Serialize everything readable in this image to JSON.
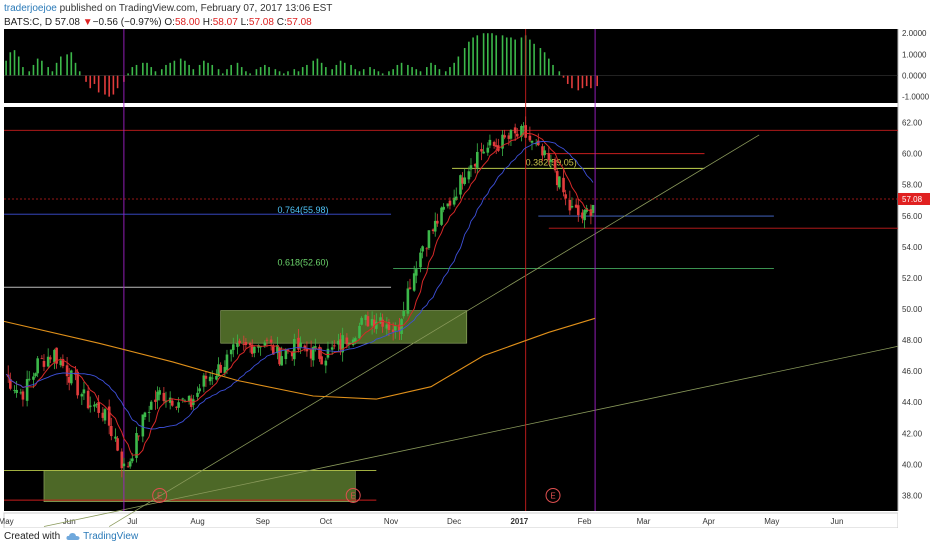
{
  "header": {
    "user": "traderjoejoe",
    "published_text": " published on TradingView.com, February 07, 2017 13:06 EST"
  },
  "quote": {
    "prefix": "BATS:C, D",
    "last": "57.08",
    "arrow": "▼",
    "change": "−0.56 (−0.97%)",
    "o_label": "O:",
    "o": "58.00",
    "h_label": "H:",
    "h": "58.07",
    "l_label": "L:",
    "l": "57.08",
    "c_label": "C:",
    "c": "57.08"
  },
  "footer": {
    "created_with": "Created with",
    "brand": "TradingView"
  },
  "colors": {
    "background": "#000000",
    "up": "#3cb84a",
    "down": "#e23c3c",
    "ma_fast": "#d62828",
    "ma_mid": "#3d4fd8",
    "ma_slow": "#e0901a",
    "zone": "#5b7a2e",
    "vline": "#a020c8",
    "hline": "#c81e1e",
    "fib": "#4fc3f7",
    "fib_green": "#6cd46c",
    "trend": "#8a9a5b",
    "osc_up": "#3cb84a",
    "osc_down": "#e23c3c"
  },
  "chart_data": {
    "type": "candlestick",
    "price_axis": {
      "ticks": [
        "62.00",
        "60.00",
        "58.00",
        "56.00",
        "54.00",
        "52.00",
        "50.00",
        "48.00",
        "46.00",
        "44.00",
        "42.00",
        "40.00",
        "38.00"
      ],
      "ylim": [
        37,
        63
      ]
    },
    "osc_axis": {
      "ticks": [
        "2.0000",
        "1.0000",
        "0.0000",
        "-1.0000"
      ],
      "ylim": [
        -1.3,
        2.2
      ]
    },
    "time_axis": {
      "labels": [
        "May",
        "Jun",
        "Jul",
        "Aug",
        "Sep",
        "Oct",
        "Nov",
        "Dec",
        "2017",
        "Feb",
        "Mar",
        "Apr",
        "May",
        "Jun"
      ]
    },
    "last_price_label": "57.08",
    "fib_levels": [
      {
        "label": "0.382(59.05)",
        "value": 59.05
      },
      {
        "label": "0.764(55.98)",
        "value": 55.98
      },
      {
        "label": "0.618(52.60)",
        "value": 52.6
      }
    ],
    "horizontal_levels": [
      61.5,
      60.0,
      59.05,
      55.2,
      51.4,
      39.6,
      37.7
    ],
    "earnings_markers": [
      "E",
      "E",
      "E"
    ],
    "demand_zones": [
      {
        "low": 47.8,
        "high": 49.9
      },
      {
        "low": 37.6,
        "high": 39.6
      }
    ],
    "trendlines": [
      {
        "from": [
          "2016-06-20",
          36.0
        ],
        "to": [
          "2017-04-25",
          61.2
        ]
      },
      {
        "from": [
          "2016-05-20",
          36.0
        ],
        "to": [
          "2017-06-30",
          47.6
        ]
      }
    ],
    "moving_averages": [
      "fast",
      "mid",
      "slow"
    ],
    "ohlc_keypoints": [
      [
        "2016-05-02",
        45.8
      ],
      [
        "2016-05-10",
        44.5
      ],
      [
        "2016-05-18",
        46.5
      ],
      [
        "2016-05-25",
        47.2
      ],
      [
        "2016-06-03",
        45.5
      ],
      [
        "2016-06-10",
        44.0
      ],
      [
        "2016-06-17",
        43.5
      ],
      [
        "2016-06-24",
        41.5
      ],
      [
        "2016-06-27",
        39.6
      ],
      [
        "2016-07-01",
        40.5
      ],
      [
        "2016-07-08",
        43.5
      ],
      [
        "2016-07-15",
        44.6
      ],
      [
        "2016-07-22",
        44.2
      ],
      [
        "2016-07-29",
        43.8
      ],
      [
        "2016-08-05",
        45.5
      ],
      [
        "2016-08-12",
        46.2
      ],
      [
        "2016-08-19",
        47.2
      ],
      [
        "2016-08-26",
        47.6
      ],
      [
        "2016-09-02",
        48.0
      ],
      [
        "2016-09-09",
        47.0
      ],
      [
        "2016-09-16",
        47.5
      ],
      [
        "2016-09-23",
        47.3
      ],
      [
        "2016-09-30",
        47.0
      ],
      [
        "2016-10-07",
        47.5
      ],
      [
        "2016-10-14",
        48.5
      ],
      [
        "2016-10-21",
        49.3
      ],
      [
        "2016-10-28",
        49.5
      ],
      [
        "2016-11-04",
        48.5
      ],
      [
        "2016-11-09",
        51.0
      ],
      [
        "2016-11-16",
        54.0
      ],
      [
        "2016-11-23",
        55.5
      ],
      [
        "2016-11-30",
        57.0
      ],
      [
        "2016-12-07",
        59.0
      ],
      [
        "2016-12-14",
        60.2
      ],
      [
        "2016-12-21",
        60.5
      ],
      [
        "2016-12-28",
        61.0
      ],
      [
        "2017-01-04",
        61.3
      ],
      [
        "2017-01-11",
        60.0
      ],
      [
        "2017-01-18",
        59.0
      ],
      [
        "2017-01-25",
        56.5
      ],
      [
        "2017-02-01",
        55.8
      ],
      [
        "2017-02-07",
        57.1
      ]
    ],
    "oscillator": [
      0.7,
      1.1,
      1.2,
      0.9,
      0.4,
      0.2,
      0.5,
      0.8,
      0.7,
      0.4,
      0.2,
      0.6,
      0.9,
      1.0,
      1.1,
      0.6,
      0.2,
      -0.3,
      -0.6,
      -0.4,
      -0.8,
      -0.9,
      -1.0,
      -0.9,
      -0.6,
      -0.3,
      0.1,
      0.4,
      0.5,
      0.6,
      0.6,
      0.4,
      0.2,
      0.3,
      0.5,
      0.6,
      0.7,
      0.8,
      0.7,
      0.5,
      0.3,
      0.5,
      0.7,
      0.6,
      0.5,
      0.3,
      0.1,
      0.3,
      0.5,
      0.6,
      0.4,
      0.2,
      0.1,
      0.3,
      0.4,
      0.5,
      0.4,
      0.3,
      0.2,
      0.1,
      0.2,
      0.3,
      0.2,
      0.4,
      0.5,
      0.7,
      0.8,
      0.6,
      0.4,
      0.3,
      0.5,
      0.7,
      0.6,
      0.5,
      0.3,
      0.2,
      0.3,
      0.4,
      0.3,
      0.2,
      0.1,
      0.2,
      0.3,
      0.5,
      0.6,
      0.5,
      0.4,
      0.3,
      0.2,
      0.4,
      0.6,
      0.5,
      0.3,
      0.2,
      0.4,
      0.6,
      0.9,
      1.3,
      1.6,
      1.8,
      1.9,
      2.0,
      2.0,
      2.0,
      1.9,
      1.9,
      1.8,
      1.8,
      1.7,
      1.8,
      1.9,
      1.7,
      1.5,
      1.3,
      1.1,
      0.8,
      0.5,
      0.2,
      -0.1,
      -0.4,
      -0.6,
      -0.7,
      -0.6,
      -0.5,
      -0.6,
      -0.5
    ]
  }
}
